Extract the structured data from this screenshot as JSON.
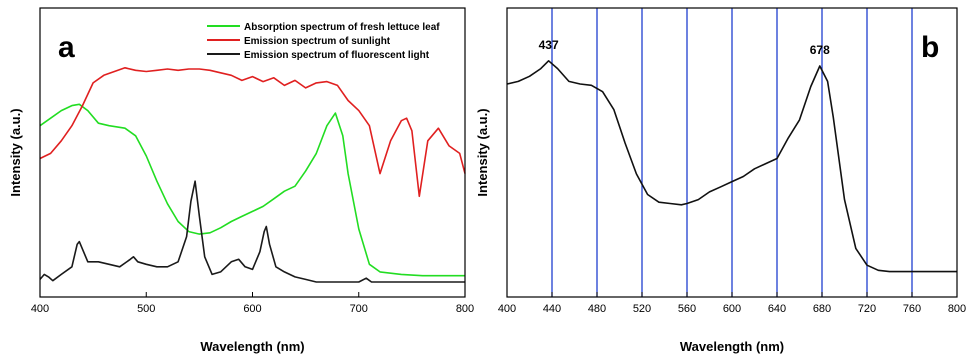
{
  "chart_data": [
    {
      "type": "line",
      "panel_label": "a",
      "xlabel": "Wavelength (nm)",
      "ylabel": "Intensity (a.u.)",
      "xlim": [
        400,
        800
      ],
      "ylim": [
        0,
        1
      ],
      "x_ticks": [
        400,
        500,
        600,
        700,
        800
      ],
      "legend_position": "top-right",
      "series": [
        {
          "name": "Absorption spectrum of fresh lettuce leaf",
          "color": "#22dd22",
          "x": [
            400,
            410,
            420,
            430,
            437,
            445,
            455,
            465,
            480,
            490,
            500,
            510,
            520,
            530,
            540,
            550,
            560,
            570,
            580,
            590,
            600,
            610,
            620,
            630,
            640,
            650,
            660,
            670,
            678,
            685,
            690,
            700,
            710,
            720,
            740,
            760,
            800
          ],
          "y": [
            0.64,
            0.67,
            0.7,
            0.72,
            0.725,
            0.7,
            0.65,
            0.64,
            0.63,
            0.6,
            0.52,
            0.42,
            0.33,
            0.26,
            0.22,
            0.21,
            0.215,
            0.235,
            0.26,
            0.28,
            0.3,
            0.32,
            0.35,
            0.38,
            0.4,
            0.46,
            0.53,
            0.64,
            0.69,
            0.6,
            0.45,
            0.23,
            0.09,
            0.06,
            0.05,
            0.045,
            0.045
          ]
        },
        {
          "name": "Emission spectrum of sunlight",
          "color": "#e02020",
          "x": [
            400,
            410,
            420,
            430,
            440,
            450,
            460,
            470,
            480,
            490,
            500,
            510,
            520,
            530,
            540,
            550,
            560,
            570,
            580,
            590,
            600,
            610,
            620,
            630,
            640,
            650,
            660,
            670,
            680,
            690,
            700,
            710,
            720,
            730,
            740,
            745,
            750,
            757,
            765,
            775,
            785,
            795,
            800
          ],
          "y": [
            0.51,
            0.53,
            0.58,
            0.64,
            0.72,
            0.81,
            0.84,
            0.855,
            0.87,
            0.86,
            0.855,
            0.86,
            0.865,
            0.86,
            0.865,
            0.865,
            0.86,
            0.85,
            0.84,
            0.82,
            0.835,
            0.815,
            0.83,
            0.8,
            0.82,
            0.79,
            0.81,
            0.815,
            0.8,
            0.74,
            0.7,
            0.64,
            0.45,
            0.58,
            0.66,
            0.67,
            0.62,
            0.36,
            0.58,
            0.63,
            0.56,
            0.53,
            0.45
          ]
        },
        {
          "name": "Emission spectrum of fluorescent light",
          "color": "#1a1a1a",
          "x": [
            400,
            404,
            408,
            412,
            420,
            430,
            435,
            437,
            440,
            445,
            455,
            465,
            475,
            485,
            488,
            492,
            500,
            510,
            520,
            530,
            538,
            542,
            546,
            550,
            555,
            562,
            570,
            580,
            587,
            593,
            600,
            607,
            611,
            613,
            616,
            622,
            630,
            640,
            650,
            660,
            670,
            680,
            690,
            700,
            707,
            712,
            720,
            740,
            760,
            800
          ],
          "y": [
            0.03,
            0.05,
            0.04,
            0.025,
            0.05,
            0.08,
            0.17,
            0.18,
            0.15,
            0.1,
            0.1,
            0.09,
            0.08,
            0.11,
            0.12,
            0.1,
            0.09,
            0.08,
            0.08,
            0.1,
            0.2,
            0.34,
            0.42,
            0.28,
            0.12,
            0.05,
            0.06,
            0.1,
            0.11,
            0.08,
            0.07,
            0.14,
            0.22,
            0.24,
            0.17,
            0.08,
            0.06,
            0.04,
            0.03,
            0.02,
            0.02,
            0.02,
            0.02,
            0.02,
            0.035,
            0.02,
            0.02,
            0.02,
            0.02,
            0.02
          ]
        }
      ]
    },
    {
      "type": "line",
      "panel_label": "b",
      "xlabel": "Wavelength (nm)",
      "ylabel": "Intensity (a.u.)",
      "xlim": [
        400,
        800
      ],
      "ylim": [
        0,
        1
      ],
      "x_ticks": [
        400,
        440,
        480,
        520,
        560,
        600,
        640,
        680,
        720,
        760,
        800
      ],
      "vertical_lines": [
        440,
        480,
        520,
        560,
        600,
        640,
        680,
        720,
        760
      ],
      "vertical_line_color": "#1f3fd0",
      "annotations": [
        {
          "text": "437",
          "x": 437,
          "y": 0.88
        },
        {
          "text": "678",
          "x": 678,
          "y": 0.86
        }
      ],
      "series": [
        {
          "color": "#111111",
          "x": [
            400,
            410,
            420,
            430,
            437,
            445,
            455,
            465,
            475,
            485,
            495,
            505,
            515,
            525,
            535,
            545,
            555,
            560,
            570,
            580,
            590,
            600,
            610,
            620,
            630,
            640,
            650,
            660,
            670,
            678,
            685,
            690,
            695,
            700,
            710,
            720,
            730,
            740,
            760,
            780,
            800
          ],
          "y": [
            0.79,
            0.8,
            0.82,
            0.85,
            0.88,
            0.85,
            0.8,
            0.79,
            0.785,
            0.76,
            0.69,
            0.56,
            0.44,
            0.36,
            0.33,
            0.325,
            0.32,
            0.325,
            0.34,
            0.37,
            0.39,
            0.41,
            0.43,
            0.46,
            0.48,
            0.5,
            0.58,
            0.65,
            0.78,
            0.86,
            0.8,
            0.66,
            0.5,
            0.34,
            0.15,
            0.085,
            0.065,
            0.06,
            0.06,
            0.06,
            0.06
          ]
        }
      ]
    }
  ]
}
